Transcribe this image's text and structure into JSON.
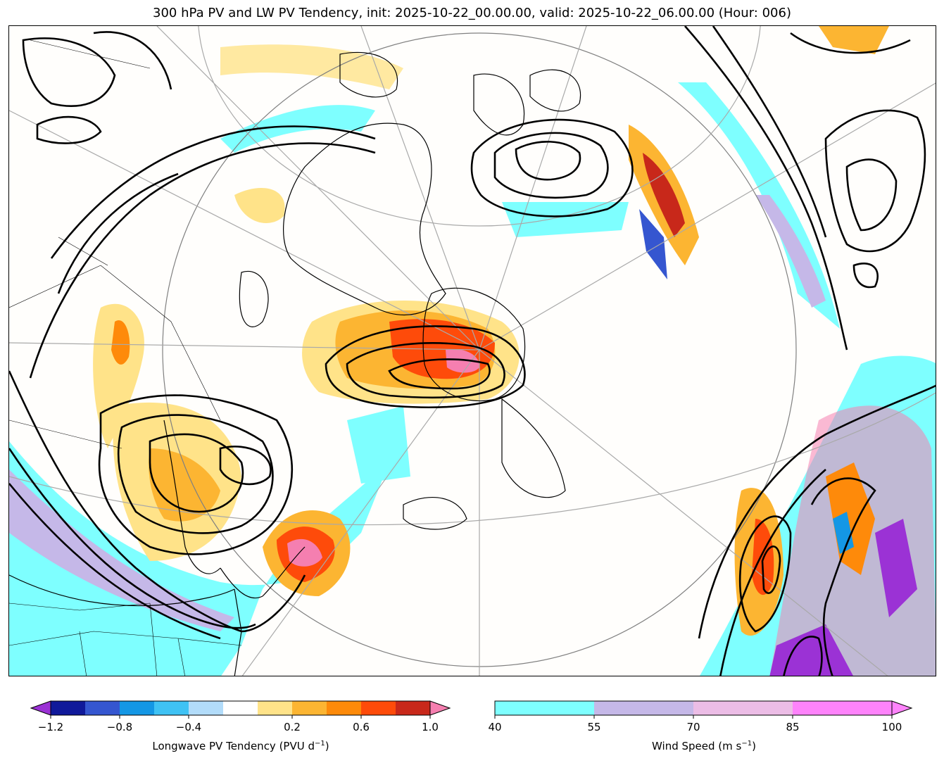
{
  "title": "300 hPa PV and LW PV Tendency, init: 2025-10-22_00.00.00, valid: 2025-10-22_06.00.00 (Hour: 006)",
  "map": {
    "fields": [
      "Longwave PV tendency (shaded)",
      "Wind speed (shaded)",
      "PV contours"
    ]
  },
  "colorbar_pv": {
    "label_text": "Longwave PV Tendency (PVU d",
    "label_sup": "−1",
    "label_end": ")",
    "ticks": [
      "−1.2",
      "−0.8",
      "−0.4",
      "0.2",
      "0.6",
      "1.0"
    ],
    "colors": [
      "#10199a",
      "#3556d0",
      "#1497e5",
      "#3fc2f4",
      "#b2dcfa",
      "#ffffff",
      "#ffe389",
      "#fcb532",
      "#fd8a0a",
      "#fe4b0a",
      "#c8281a"
    ],
    "under_color": "#9b32d5",
    "over_color": "#f57fb0"
  },
  "colorbar_wind": {
    "label_text": "Wind Speed (m s",
    "label_sup": "−1",
    "label_end": ")",
    "ticks": [
      "40",
      "55",
      "70",
      "85",
      "100"
    ],
    "colors": [
      "#7effff",
      "#c5b8e8",
      "#ecbde6",
      "#fe83fb"
    ],
    "over_color": "#fe83fb"
  }
}
